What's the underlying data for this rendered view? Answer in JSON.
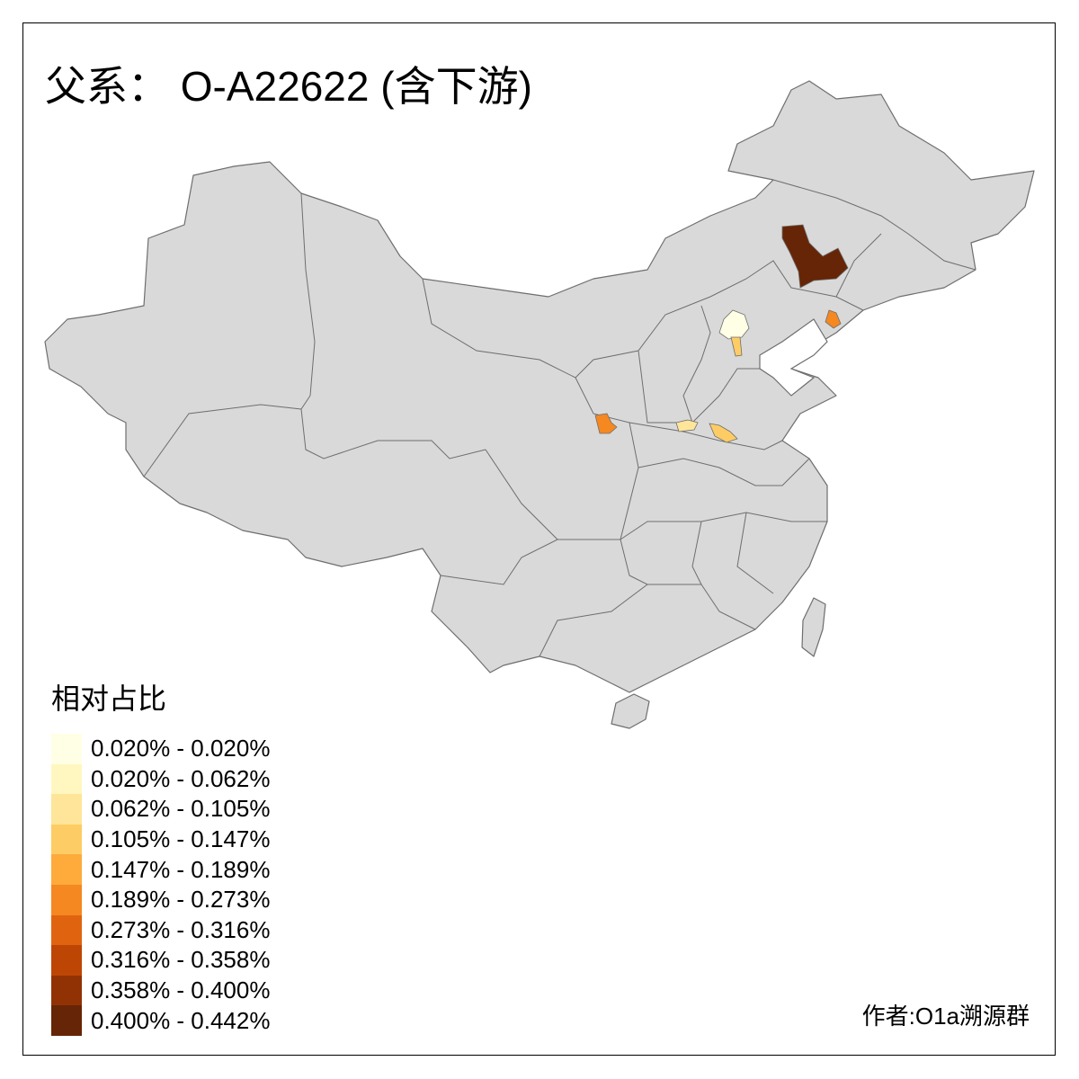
{
  "title": "父系： O-A22622 (含下游)",
  "legend": {
    "title": "相对占比",
    "items": [
      {
        "label": "0.020% - 0.020%",
        "color": "#FFFFE5"
      },
      {
        "label": "0.020% - 0.062%",
        "color": "#FFF7BF"
      },
      {
        "label": "0.062% - 0.105%",
        "color": "#FEE599"
      },
      {
        "label": "0.105% - 0.147%",
        "color": "#FECC64"
      },
      {
        "label": "0.147% - 0.189%",
        "color": "#FEAB3C"
      },
      {
        "label": "0.189% - 0.273%",
        "color": "#F58820"
      },
      {
        "label": "0.273% - 0.316%",
        "color": "#E0640F"
      },
      {
        "label": "0.316% - 0.358%",
        "color": "#BE4605"
      },
      {
        "label": "0.358% - 0.400%",
        "color": "#913204"
      },
      {
        "label": "0.400% - 0.442%",
        "color": "#662506"
      }
    ]
  },
  "author": "作者:O1a溯源群",
  "colors": {
    "land": "#D9D9D9",
    "border": "#6E6E6E",
    "no_data": "#D9D9D9"
  }
}
